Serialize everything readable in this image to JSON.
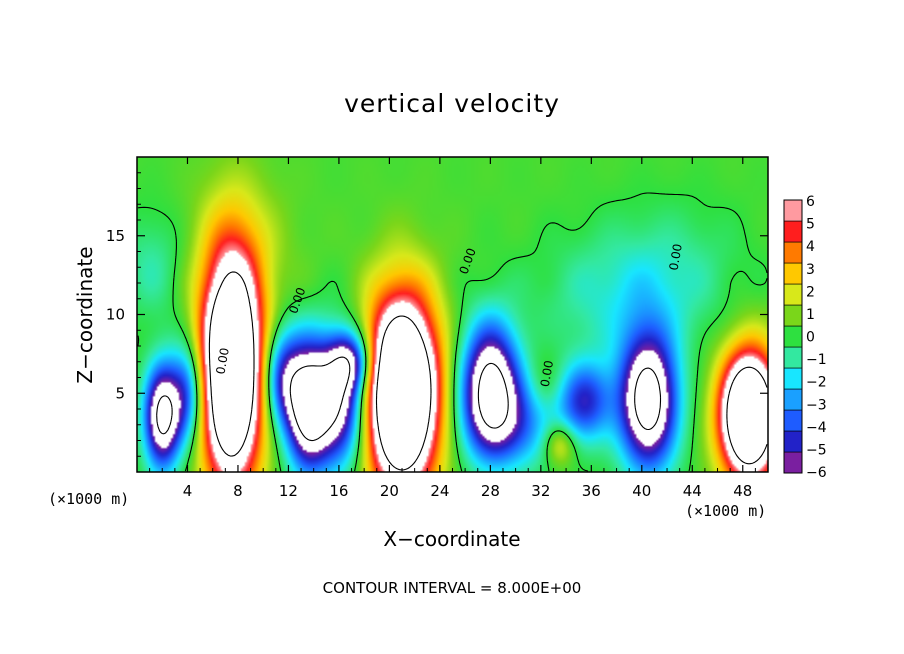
{
  "chart_data": {
    "type": "heatmap",
    "title": "vertical velocity",
    "xlabel": "X−coordinate",
    "ylabel": "Z−coordinate",
    "x_unit_left": "(×1000 m)",
    "x_unit_right": "(×1000 m)",
    "xlim": [
      0,
      50
    ],
    "ylim": [
      0,
      20
    ],
    "x_ticks": [
      4,
      8,
      12,
      16,
      20,
      24,
      28,
      32,
      36,
      40,
      44,
      48
    ],
    "x_tick_labels": [
      "4",
      "8",
      "12",
      "16",
      "20",
      "24",
      "28",
      "32",
      "36",
      "40",
      "44",
      "48"
    ],
    "y_ticks": [
      5,
      10,
      15
    ],
    "y_tick_labels": [
      "5",
      "10",
      "15"
    ],
    "footer": "CONTOUR INTERVAL = 8.000E+00",
    "contour_labels": [
      "0.00",
      "0.00",
      "0.00",
      "0.00",
      "0.00"
    ],
    "colorbar": {
      "min": -6,
      "max": 6,
      "tick_labels": [
        "6",
        "5",
        "4",
        "3",
        "2",
        "1",
        "0",
        "−1",
        "−2",
        "−3",
        "−4",
        "−5",
        "−6"
      ],
      "colors": [
        "#7a1fa0",
        "#2222c8",
        "#1e5cff",
        "#1aa0ff",
        "#18e6ff",
        "#33e8a0",
        "#2ee040",
        "#7ad61a",
        "#d8e81a",
        "#ffc800",
        "#ff7a00",
        "#ff1e1e",
        "#ff9aa0"
      ]
    },
    "cells": [
      {
        "x": 2.0,
        "z": 3.5,
        "sx": 1.0,
        "sz": 2.3,
        "w": -9
      },
      {
        "x": 4.0,
        "z": 5.0,
        "sx": 1.0,
        "sz": 2.2,
        "w": -5
      },
      {
        "x": 7.5,
        "z": 6.5,
        "sx": 1.7,
        "sz": 5.0,
        "w": 14
      },
      {
        "x": 8.2,
        "z": 14.0,
        "sx": 2.8,
        "sz": 3.5,
        "w": 1.2
      },
      {
        "x": 11.5,
        "z": 6.0,
        "sx": 1.1,
        "sz": 2.2,
        "w": -5
      },
      {
        "x": 13.5,
        "z": 4.2,
        "sx": 1.2,
        "sz": 2.8,
        "w": -9
      },
      {
        "x": 16.0,
        "z": 4.5,
        "sx": 1.5,
        "sz": 2.8,
        "w": -8
      },
      {
        "x": 17.0,
        "z": 7.0,
        "sx": 1.2,
        "sz": 1.3,
        "w": -5
      },
      {
        "x": 21.0,
        "z": 5.0,
        "sx": 2.0,
        "sz": 4.2,
        "w": 15
      },
      {
        "x": 28.0,
        "z": 5.5,
        "sx": 1.6,
        "sz": 2.8,
        "w": -9
      },
      {
        "x": 30.0,
        "z": 3.0,
        "sx": 2.6,
        "sz": 2.0,
        "w": -3.5
      },
      {
        "x": 32.5,
        "z": 5.5,
        "sx": 1.0,
        "sz": 1.5,
        "w": 1.0
      },
      {
        "x": 33.5,
        "z": 1.8,
        "sx": 0.9,
        "sz": 1.0,
        "w": 3.0
      },
      {
        "x": 35.5,
        "z": 4.5,
        "sx": 1.5,
        "sz": 1.8,
        "w": -5
      },
      {
        "x": 40.5,
        "z": 4.5,
        "sx": 1.6,
        "sz": 3.0,
        "w": -10
      },
      {
        "x": 38.0,
        "z": 11.0,
        "sx": 4.5,
        "sz": 2.8,
        "w": -1.6
      },
      {
        "x": 42.5,
        "z": 13.0,
        "sx": 4.0,
        "sz": 3.0,
        "w": -1.0
      },
      {
        "x": 48.5,
        "z": 3.6,
        "sx": 1.6,
        "sz": 2.8,
        "w": 14
      },
      {
        "x": 1.2,
        "z": 13.0,
        "sx": 1.8,
        "sz": 2.5,
        "w": -1.4
      }
    ]
  }
}
